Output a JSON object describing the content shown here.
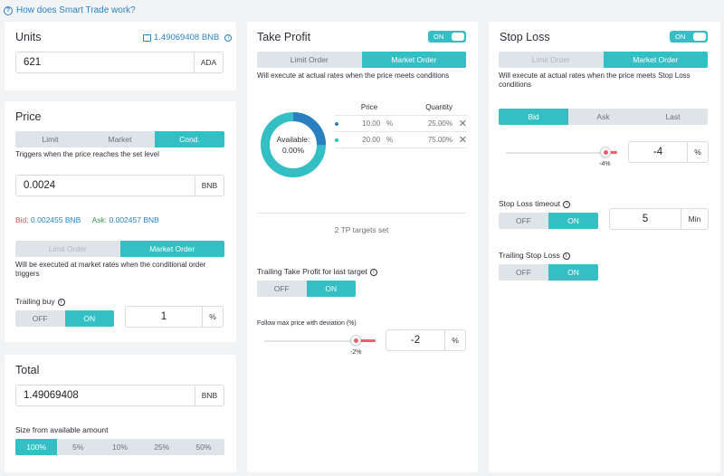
{
  "help_link": "How does Smart Trade work?",
  "units": {
    "title": "Units",
    "balance": "1.49069408 BNB",
    "value": "621",
    "unit": "ADA"
  },
  "price": {
    "title": "Price",
    "tabs": [
      "Limit",
      "Market",
      "Cond."
    ],
    "active_tab": "Cond.",
    "hint": "Triggers when the price reaches the set level",
    "value": "0.0024",
    "unit": "BNB",
    "bid_label": "Bid:",
    "bid_value": "0.002455 BNB",
    "ask_label": "Ask:",
    "ask_value": "0.002457 BNB",
    "order_tabs": [
      "Limit Order",
      "Market Order"
    ],
    "order_active": "Market Order",
    "order_hint": "Will be executed at market rates when the conditional order triggers",
    "trailing_label": "Trailing buy",
    "trailing_off": "OFF",
    "trailing_on": "ON",
    "trailing_value": "1",
    "trailing_unit": "%"
  },
  "total": {
    "title": "Total",
    "value": "1.49069408",
    "unit": "BNB",
    "size_label": "Size from available amount",
    "sizes": [
      "100%",
      "5%",
      "10%",
      "25%",
      "50%"
    ],
    "size_active": "100%"
  },
  "take_profit": {
    "title": "Take Profit",
    "toggle": "ON",
    "order_tabs": [
      "Limit Order",
      "Market Order"
    ],
    "order_active": "Market Order",
    "hint": "Will execute at actual rates when the price meets conditions",
    "donut_label": "Available:",
    "donut_value": "0.00%",
    "donut_progress": 0.25,
    "table_headers": [
      "Price",
      "Quantity"
    ],
    "rows": [
      {
        "price": "10.00",
        "price_unit": "%",
        "qty": "25.00%",
        "color": "#2a7fc0"
      },
      {
        "price": "20.00",
        "price_unit": "%",
        "qty": "75.00%",
        "color": "#33bfc4"
      }
    ],
    "targets_text": "2 TP targets set",
    "trailing_label": "Trailing Take Profit for last target",
    "trailing_off": "OFF",
    "trailing_on": "ON",
    "deviation_label": "Follow max price with deviation (%)",
    "slider_label": "-2%",
    "deviation_value": "-2",
    "deviation_unit": "%"
  },
  "stop_loss": {
    "title": "Stop Loss",
    "toggle": "ON",
    "order_tabs": [
      "Limit Order",
      "Market Order"
    ],
    "order_active": "Market Order",
    "hint": "Will execute at actual rates when the price meets Stop Loss conditions",
    "price_tabs": [
      "Bid",
      "Ask",
      "Last"
    ],
    "price_active": "Bid",
    "slider_label": "-4%",
    "value": "-4",
    "unit": "%",
    "timeout_label": "Stop Loss timeout",
    "timeout_off": "OFF",
    "timeout_on": "ON",
    "timeout_value": "5",
    "timeout_unit": "Min",
    "trailing_label": "Trailing Stop Loss",
    "trailing_off": "OFF",
    "trailing_on": "ON"
  },
  "colors": {
    "accent": "#33bfc4",
    "link": "#2a83c6",
    "bid": "#e05563",
    "ask": "#2a83c6",
    "slider": "#e8606b"
  }
}
